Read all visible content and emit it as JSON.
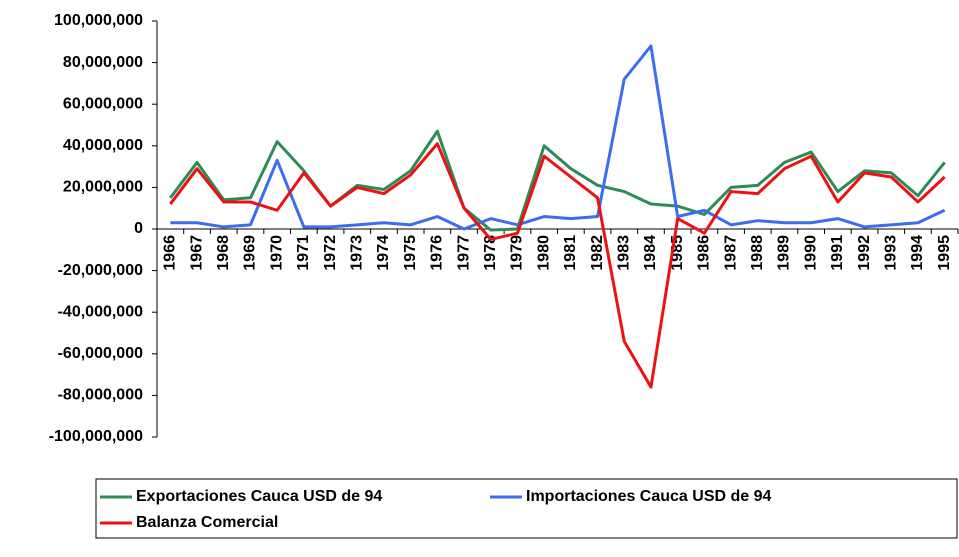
{
  "chart_data": {
    "type": "line",
    "categories": [
      "1966",
      "1967",
      "1968",
      "1969",
      "1970",
      "1971",
      "1972",
      "1973",
      "1974",
      "1975",
      "1976",
      "1977",
      "1978",
      "1979",
      "1980",
      "1981",
      "1982",
      "1983",
      "1984",
      "1985",
      "1986",
      "1987",
      "1988",
      "1989",
      "1990",
      "1991",
      "1992",
      "1993",
      "1994",
      "1995"
    ],
    "series": [
      {
        "name": "Exportaciones Cauca USD de 94",
        "color": "#2e8b57",
        "values": [
          15000000,
          32000000,
          14000000,
          15000000,
          42000000,
          28000000,
          11000000,
          21000000,
          19000000,
          28000000,
          47000000,
          10000000,
          -500000,
          0,
          40000000,
          29000000,
          21000000,
          18000000,
          12000000,
          11000000,
          7000000,
          20000000,
          21000000,
          32000000,
          37000000,
          18000000,
          28000000,
          27000000,
          16000000,
          32000000
        ]
      },
      {
        "name": "Importaciones Cauca USD de 94",
        "color": "#3a6df0",
        "values": [
          3000000,
          3000000,
          1000000,
          2000000,
          33000000,
          1000000,
          1000000,
          2000000,
          3000000,
          2000000,
          6000000,
          0,
          5000000,
          2000000,
          6000000,
          5000000,
          6000000,
          72000000,
          88000000,
          6000000,
          9000000,
          2000000,
          4000000,
          3000000,
          3000000,
          5000000,
          1000000,
          2000000,
          3000000,
          9000000
        ]
      },
      {
        "name": "Balanza Comercial",
        "color": "#ee1111",
        "values": [
          12000000,
          29000000,
          13000000,
          13000000,
          9000000,
          27000000,
          11000000,
          20000000,
          17000000,
          26000000,
          41000000,
          10000000,
          -5000000,
          -2000000,
          35000000,
          25000000,
          15000000,
          -54000000,
          -76000000,
          5000000,
          -2000000,
          18000000,
          17000000,
          29000000,
          35000000,
          13000000,
          27000000,
          25000000,
          13000000,
          25000000
        ]
      }
    ],
    "ylim": [
      -100000000,
      100000000
    ],
    "yticks": [
      {
        "value": -100000000,
        "label": "-100,000,000"
      },
      {
        "value": -80000000,
        "label": "-80,000,000"
      },
      {
        "value": -60000000,
        "label": "-60,000,000"
      },
      {
        "value": -40000000,
        "label": "-40,000,000"
      },
      {
        "value": -20000000,
        "label": "-20,000,000"
      },
      0,
      {
        "value": 20000000,
        "label": "20,000,000"
      },
      {
        "value": 40000000,
        "label": "40,000,000"
      },
      {
        "value": 60000000,
        "label": "60,000,000"
      },
      {
        "value": 80000000,
        "label": "80,000,000"
      },
      {
        "value": 100000000,
        "label": "100,000,000"
      }
    ],
    "grid": false,
    "legend": "bottom"
  }
}
